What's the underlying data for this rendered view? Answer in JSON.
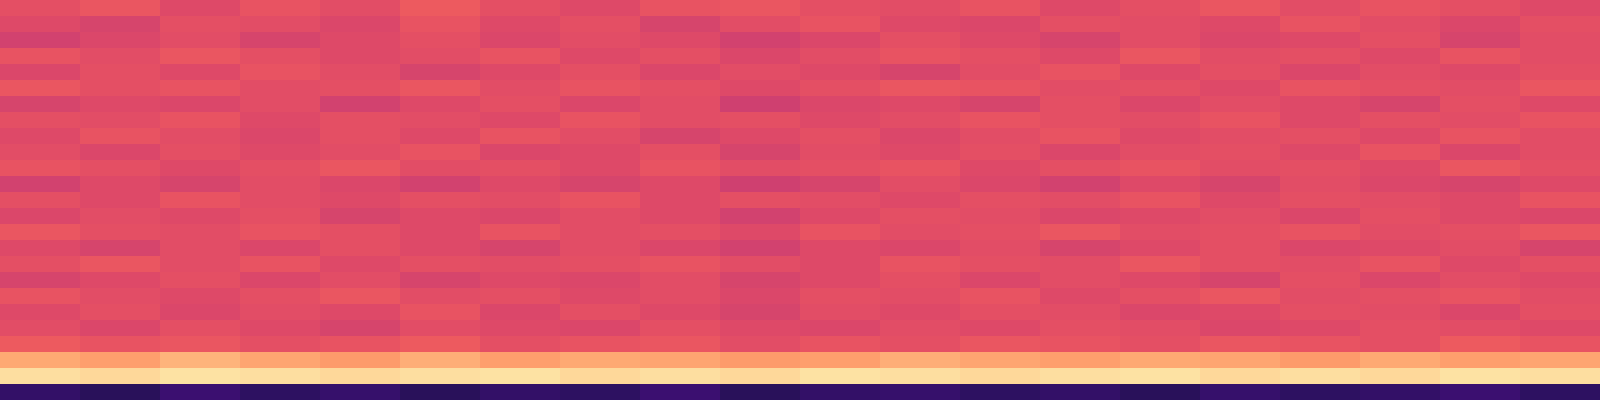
{
  "chart_data": {
    "type": "heatmap",
    "tick_labels": false,
    "zlim": [
      0,
      100
    ],
    "cells": [
      [
        62,
        64,
        60,
        63,
        61,
        65,
        62,
        60,
        63,
        64,
        62,
        61,
        63,
        60,
        62,
        64,
        61,
        63,
        62,
        60
      ],
      [
        60,
        58,
        62,
        61,
        59,
        63,
        60,
        62,
        58,
        61,
        63,
        60,
        59,
        62,
        61,
        60,
        63,
        61,
        59,
        62
      ],
      [
        57,
        59,
        61,
        58,
        60,
        62,
        59,
        61,
        60,
        57,
        59,
        62,
        60,
        58,
        61,
        59,
        60,
        62,
        58,
        61
      ],
      [
        63,
        61,
        64,
        62,
        60,
        61,
        63,
        60,
        62,
        59,
        61,
        63,
        62,
        60,
        64,
        61,
        62,
        60,
        63,
        61
      ],
      [
        59,
        62,
        60,
        63,
        61,
        58,
        60,
        62,
        59,
        61,
        60,
        58,
        61,
        63,
        60,
        62,
        59,
        61,
        60,
        62
      ],
      [
        64,
        62,
        63,
        61,
        62,
        64,
        61,
        63,
        62,
        60,
        62,
        64,
        63,
        61,
        62,
        60,
        63,
        62,
        61,
        64
      ],
      [
        58,
        60,
        59,
        61,
        57,
        60,
        62,
        59,
        61,
        56,
        59,
        60,
        58,
        62,
        59,
        61,
        60,
        58,
        62,
        60
      ],
      [
        62,
        61,
        63,
        60,
        62,
        61,
        60,
        63,
        61,
        62,
        60,
        61,
        63,
        62,
        61,
        63,
        60,
        62,
        61,
        63
      ],
      [
        60,
        63,
        61,
        59,
        62,
        60,
        63,
        61,
        58,
        60,
        62,
        59,
        61,
        63,
        60,
        61,
        62,
        60,
        63,
        61
      ],
      [
        61,
        59,
        62,
        60,
        61,
        63,
        59,
        60,
        62,
        58,
        61,
        60,
        62,
        59,
        61,
        62,
        60,
        63,
        59,
        61
      ],
      [
        63,
        62,
        60,
        62,
        64,
        61,
        62,
        60,
        63,
        61,
        62,
        63,
        60,
        62,
        63,
        61,
        62,
        60,
        64,
        62
      ],
      [
        57,
        60,
        58,
        61,
        59,
        57,
        60,
        58,
        60,
        56,
        58,
        61,
        59,
        57,
        60,
        58,
        61,
        59,
        58,
        60
      ],
      [
        62,
        60,
        63,
        61,
        60,
        62,
        61,
        63,
        60,
        62,
        61,
        60,
        62,
        61,
        63,
        60,
        62,
        61,
        60,
        63
      ],
      [
        59,
        61,
        60,
        62,
        58,
        60,
        59,
        61,
        60,
        57,
        60,
        62,
        61,
        59,
        60,
        61,
        59,
        62,
        60,
        59
      ],
      [
        64,
        62,
        61,
        63,
        62,
        60,
        63,
        61,
        62,
        60,
        63,
        61,
        62,
        64,
        61,
        62,
        63,
        61,
        62,
        64
      ],
      [
        60,
        58,
        61,
        59,
        62,
        60,
        58,
        61,
        59,
        57,
        60,
        59,
        61,
        58,
        60,
        62,
        59,
        60,
        61,
        58
      ],
      [
        62,
        64,
        61,
        63,
        60,
        62,
        61,
        62,
        63,
        61,
        60,
        63,
        62,
        61,
        64,
        62,
        61,
        63,
        60,
        62
      ],
      [
        58,
        60,
        62,
        59,
        61,
        58,
        60,
        59,
        61,
        58,
        60,
        62,
        59,
        61,
        60,
        58,
        62,
        59,
        61,
        60
      ],
      [
        63,
        61,
        60,
        62,
        64,
        61,
        62,
        60,
        61,
        59,
        62,
        61,
        63,
        60,
        62,
        64,
        61,
        62,
        63,
        61
      ],
      [
        60,
        62,
        59,
        61,
        60,
        63,
        59,
        62,
        60,
        58,
        61,
        60,
        62,
        61,
        59,
        60,
        62,
        61,
        59,
        62
      ],
      [
        61,
        59,
        62,
        60,
        58,
        61,
        60,
        59,
        62,
        60,
        59,
        61,
        60,
        62,
        61,
        59,
        60,
        62,
        61,
        60
      ],
      [
        65,
        63,
        64,
        62,
        63,
        65,
        62,
        63,
        64,
        61,
        63,
        62,
        64,
        63,
        62,
        64,
        63,
        62,
        65,
        63
      ],
      [
        82,
        80,
        84,
        81,
        79,
        83,
        80,
        82,
        81,
        79,
        80,
        83,
        81,
        80,
        82,
        81,
        79,
        82,
        80,
        81
      ],
      [
        93,
        92,
        94,
        93,
        92,
        93,
        94,
        92,
        93,
        92,
        94,
        93,
        92,
        93,
        94,
        92,
        93,
        92,
        94,
        93
      ],
      [
        18,
        16,
        20,
        17,
        19,
        16,
        18,
        17,
        20,
        16,
        18,
        19,
        17,
        18,
        16,
        19,
        17,
        18,
        20,
        17
      ]
    ]
  }
}
